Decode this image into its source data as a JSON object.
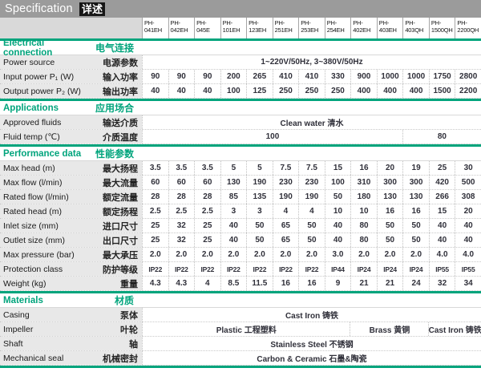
{
  "banner": {
    "title_en": "Specification",
    "title_zh": "详述"
  },
  "colors": {
    "accent": "#00A47C",
    "banner_gray": "#9B9B9B",
    "label_bg": "#E8E8E8",
    "header_stub_bg": "#D9D9D9"
  },
  "columns": [
    "PH-041EH",
    "PH-042EH",
    "PH-045E",
    "PH-101EH",
    "PH-123EH",
    "PH-251EH",
    "PH-253EH",
    "PH-254EH",
    "PH-402EH",
    "PH-403EH",
    "PH-403QH",
    "PH-1500QH",
    "PH-2200QH"
  ],
  "table": {
    "sections": [
      {
        "title_en": "Electrical connection",
        "title_zh": "电气连接",
        "rows": [
          {
            "label_en": "Power source",
            "label_zh": "电源参数",
            "spans": [
              {
                "cols": 13,
                "text": "1~220V/50Hz, 3~380V/50Hz"
              }
            ]
          },
          {
            "label_en": "Input power P₁ (W)",
            "label_zh": "输入功率",
            "values": [
              "90",
              "90",
              "90",
              "200",
              "265",
              "410",
              "410",
              "330",
              "900",
              "1000",
              "1000",
              "1750",
              "2800"
            ]
          },
          {
            "label_en": "Output power P₂ (W)",
            "label_zh": "输出功率",
            "values": [
              "40",
              "40",
              "40",
              "100",
              "125",
              "250",
              "250",
              "250",
              "400",
              "400",
              "400",
              "1500",
              "2200"
            ]
          }
        ]
      },
      {
        "title_en": "Applications",
        "title_zh": "应用场合",
        "rows": [
          {
            "label_en": "Approved fluids",
            "label_zh": "输送介质",
            "spans": [
              {
                "cols": 13,
                "text": "Clean water 清水"
              }
            ]
          },
          {
            "label_en": "Fluid temp (℃)",
            "label_zh": "介质温度",
            "spans": [
              {
                "cols": 10,
                "text": "100"
              },
              {
                "cols": 3,
                "text": "80"
              }
            ]
          }
        ]
      },
      {
        "title_en": "Performance data",
        "title_zh": "性能参数",
        "rows": [
          {
            "label_en": "Max head (m)",
            "label_zh": "最大扬程",
            "values": [
              "3.5",
              "3.5",
              "3.5",
              "5",
              "5",
              "7.5",
              "7.5",
              "15",
              "16",
              "20",
              "19",
              "25",
              "30"
            ]
          },
          {
            "label_en": "Max flow (l/min)",
            "label_zh": "最大流量",
            "values": [
              "60",
              "60",
              "60",
              "130",
              "190",
              "230",
              "230",
              "100",
              "310",
              "300",
              "300",
              "420",
              "500"
            ]
          },
          {
            "label_en": "Rated flow (l/min)",
            "label_zh": "额定流量",
            "values": [
              "28",
              "28",
              "28",
              "85",
              "135",
              "190",
              "190",
              "50",
              "180",
              "130",
              "130",
              "266",
              "308"
            ]
          },
          {
            "label_en": "Rated head (m)",
            "label_zh": "额定扬程",
            "values": [
              "2.5",
              "2.5",
              "2.5",
              "3",
              "3",
              "4",
              "4",
              "10",
              "10",
              "16",
              "16",
              "15",
              "20"
            ]
          },
          {
            "label_en": "Inlet size (mm)",
            "label_zh": "进口尺寸",
            "values": [
              "25",
              "32",
              "25",
              "40",
              "50",
              "65",
              "50",
              "40",
              "80",
              "50",
              "50",
              "40",
              "40"
            ]
          },
          {
            "label_en": "Outlet size (mm)",
            "label_zh": "出口尺寸",
            "values": [
              "25",
              "32",
              "25",
              "40",
              "50",
              "65",
              "50",
              "40",
              "80",
              "50",
              "50",
              "40",
              "40"
            ]
          },
          {
            "label_en": "Max pressure (bar)",
            "label_zh": "最大承压",
            "values": [
              "2.0",
              "2.0",
              "2.0",
              "2.0",
              "2.0",
              "2.0",
              "2.0",
              "3.0",
              "2.0",
              "2.0",
              "2.0",
              "4.0",
              "4.0"
            ]
          },
          {
            "label_en": "Protection class",
            "label_zh": "防护等级",
            "small": true,
            "values": [
              "IP22",
              "IP22",
              "IP22",
              "IP22",
              "IP22",
              "IP22",
              "IP22",
              "IP44",
              "IP24",
              "IP24",
              "IP24",
              "IP55",
              "IP55"
            ]
          },
          {
            "label_en": "Weight (kg)",
            "label_zh": "重量",
            "values": [
              "4.3",
              "4.3",
              "4",
              "8.5",
              "11.5",
              "16",
              "16",
              "9",
              "21",
              "21",
              "24",
              "32",
              "34"
            ]
          }
        ]
      },
      {
        "title_en": "Materials",
        "title_zh": "材质",
        "rows": [
          {
            "label_en": "Casing",
            "label_zh": "泵体",
            "spans": [
              {
                "cols": 13,
                "text": "Cast Iron 铸铁"
              }
            ]
          },
          {
            "label_en": "Impeller",
            "label_zh": "叶轮",
            "spans": [
              {
                "cols": 8,
                "text": "Plastic 工程塑料"
              },
              {
                "cols": 3,
                "text": "Brass 黄铜"
              },
              {
                "cols": 2,
                "text": "Cast Iron 铸铁"
              }
            ]
          },
          {
            "label_en": "Shaft",
            "label_zh": "轴",
            "spans": [
              {
                "cols": 13,
                "text": "Stainless Steel 不锈钢"
              }
            ]
          },
          {
            "label_en": "Mechanical seal",
            "label_zh": "机械密封",
            "spans": [
              {
                "cols": 13,
                "text": "Carbon & Ceramic 石墨&陶瓷"
              }
            ]
          }
        ]
      }
    ]
  }
}
